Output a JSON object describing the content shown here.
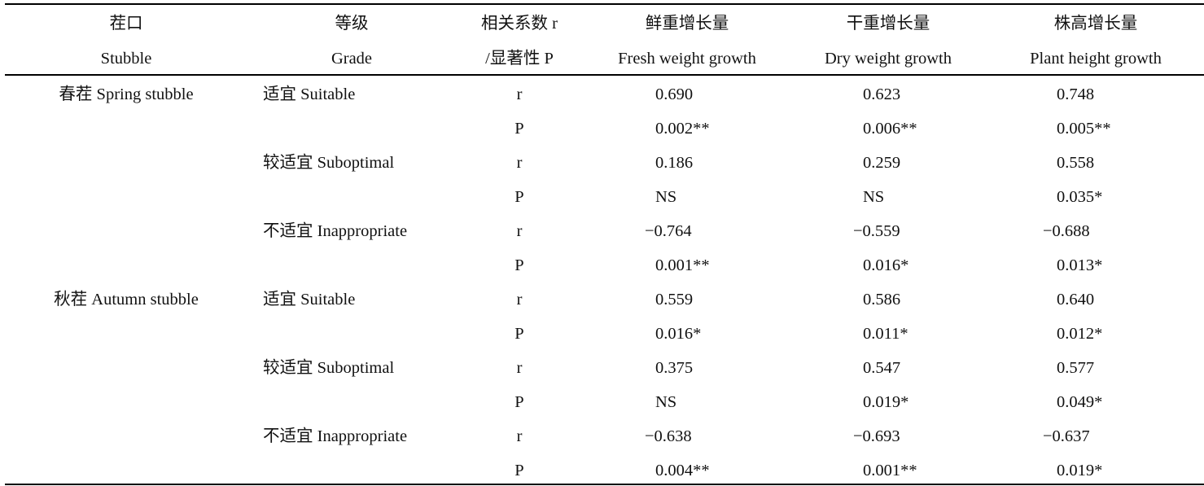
{
  "header": {
    "stubble": {
      "zh": "茬口",
      "en": "Stubble"
    },
    "grade": {
      "zh": "等级",
      "en": "Grade"
    },
    "coef": {
      "zh": "相关系数 r",
      "en": "/显著性 P"
    },
    "fresh": {
      "zh": "鲜重增长量",
      "en": "Fresh weight growth"
    },
    "dry": {
      "zh": "干重增长量",
      "en": "Dry weight growth"
    },
    "height": {
      "zh": "株高增长量",
      "en": "Plant height growth"
    }
  },
  "stubbles": [
    "春茬 Spring stubble",
    "秋茬 Autumn stubble"
  ],
  "grades": [
    "适宜 Suitable",
    "较适宜 Suboptimal",
    "不适宜 Inappropriate"
  ],
  "rows": [
    {
      "stat": "r",
      "fresh": "0.690",
      "dry": "0.623",
      "height": "0.748"
    },
    {
      "stat": "P",
      "fresh": "0.002**",
      "dry": "0.006**",
      "height": "0.005**"
    },
    {
      "stat": "r",
      "fresh": "0.186",
      "dry": "0.259",
      "height": "0.558"
    },
    {
      "stat": "P",
      "fresh": "NS",
      "dry": "NS",
      "height": "0.035*"
    },
    {
      "stat": "r",
      "fresh": "−0.764",
      "dry": "−0.559",
      "height": "−0.688"
    },
    {
      "stat": "P",
      "fresh": "0.001**",
      "dry": "0.016*",
      "height": "0.013*"
    },
    {
      "stat": "r",
      "fresh": "0.559",
      "dry": "0.586",
      "height": "0.640"
    },
    {
      "stat": "P",
      "fresh": "0.016*",
      "dry": "0.011*",
      "height": "0.012*"
    },
    {
      "stat": "r",
      "fresh": "0.375",
      "dry": "0.547",
      "height": "0.577"
    },
    {
      "stat": "P",
      "fresh": "NS",
      "dry": "0.019*",
      "height": "0.049*"
    },
    {
      "stat": "r",
      "fresh": "−0.638",
      "dry": "−0.693",
      "height": "−0.637"
    },
    {
      "stat": "P",
      "fresh": "0.004**",
      "dry": "0.001**",
      "height": "0.019*"
    }
  ]
}
